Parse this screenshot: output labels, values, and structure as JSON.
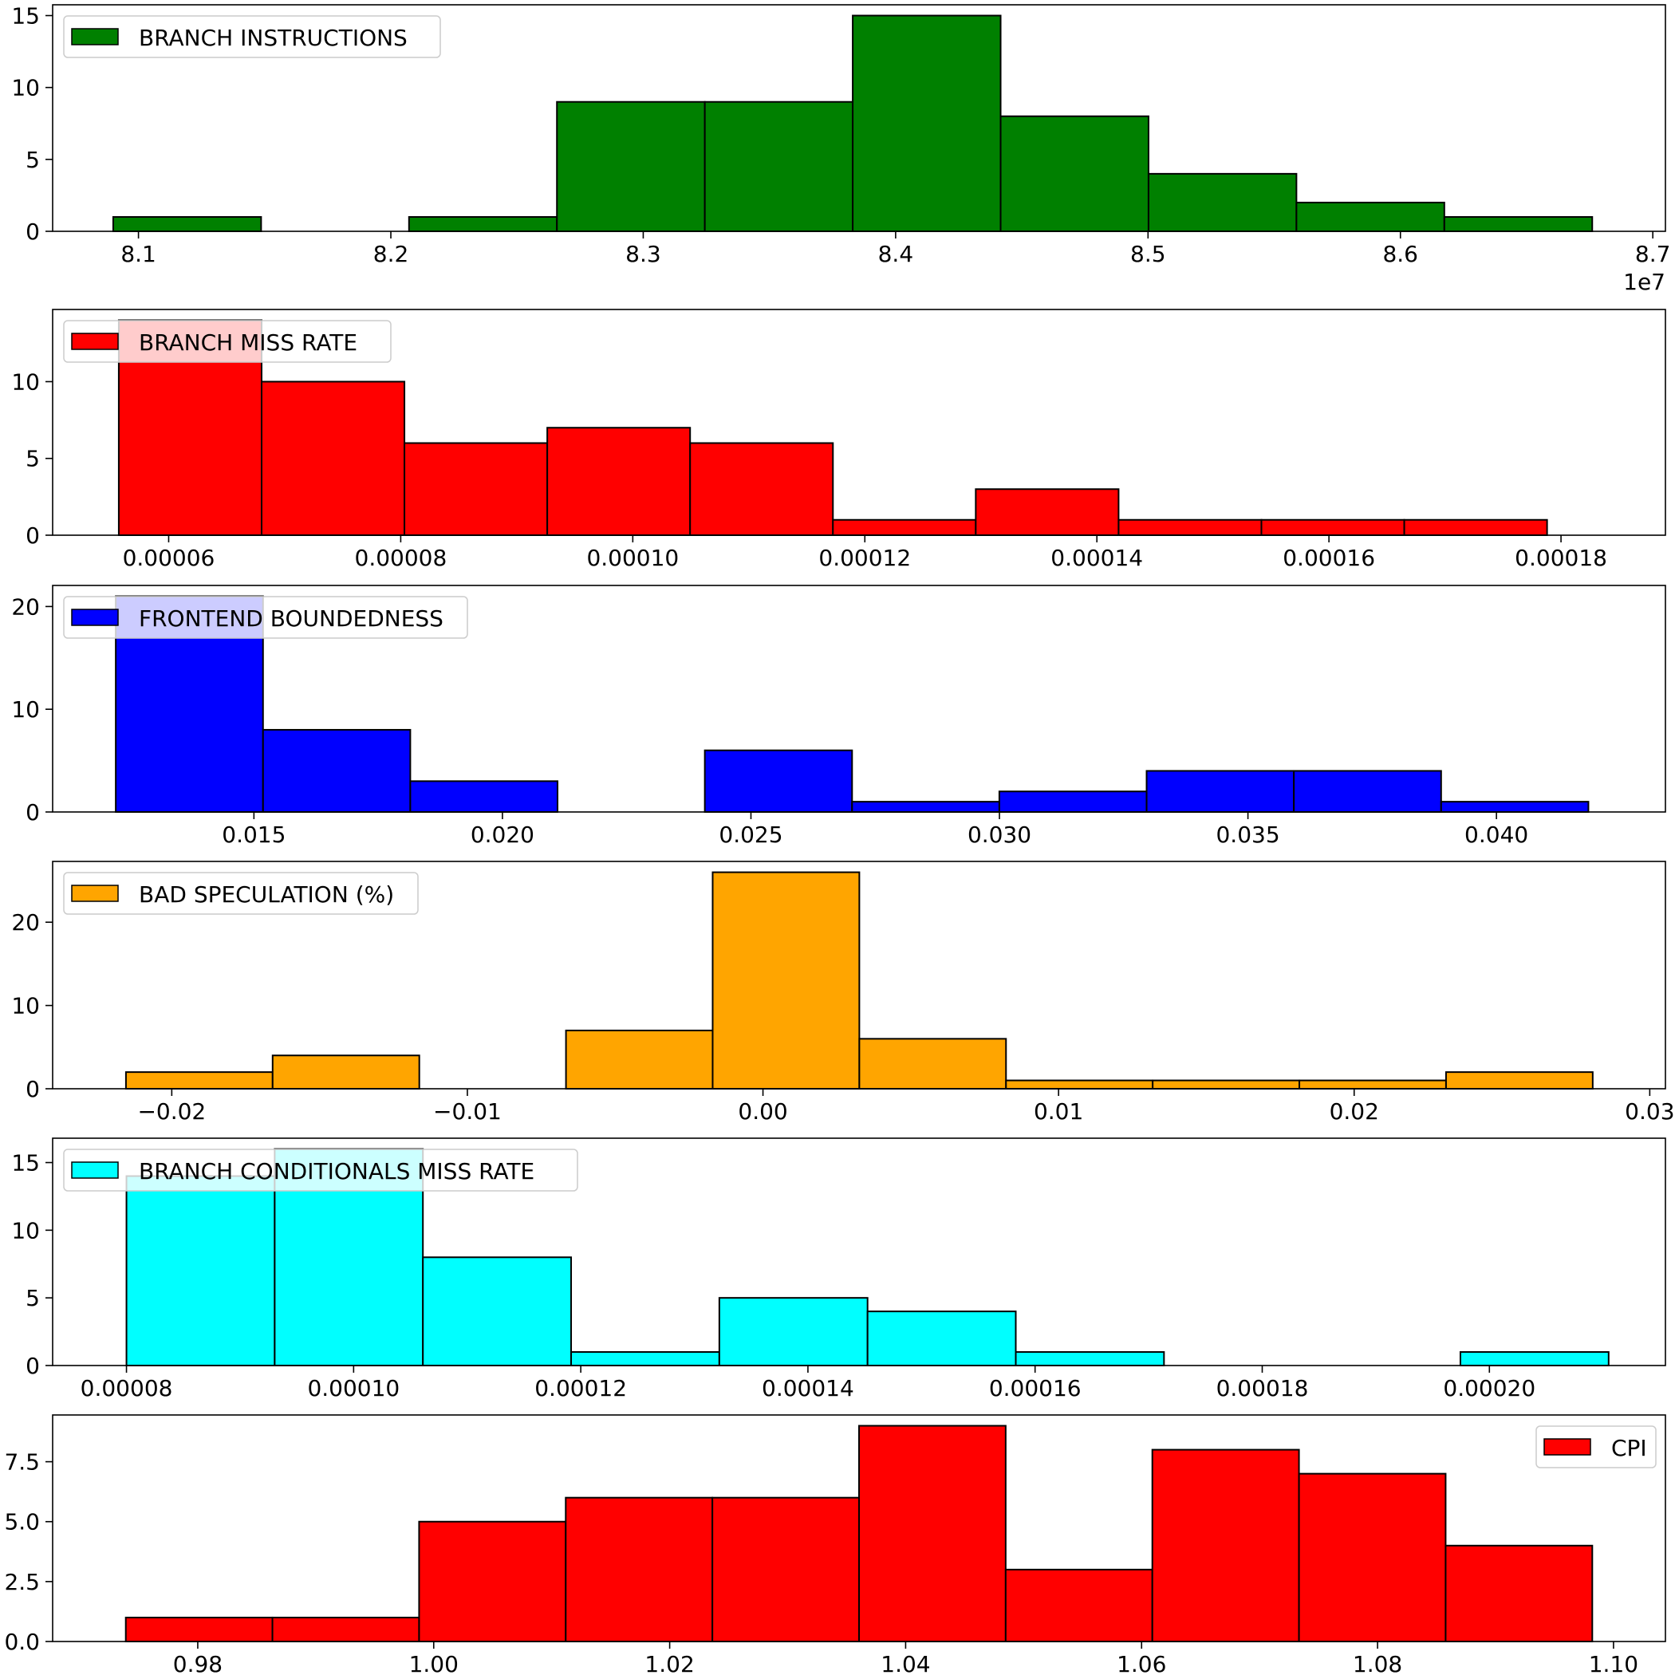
{
  "chart_data": [
    {
      "type": "bar",
      "subtype": "histogram",
      "legend": "BRANCH INSTRUCTIONS",
      "legend_position": "upper-left",
      "color": "#008000",
      "bin_start": 80900000,
      "bin_width": 586000,
      "counts": [
        1,
        0,
        1,
        9,
        9,
        15,
        8,
        4,
        2,
        1
      ],
      "xlim": [
        80660000,
        87050000
      ],
      "ylim": [
        0,
        15.75
      ],
      "xticks": [
        81000000,
        82000000,
        83000000,
        84000000,
        85000000,
        86000000,
        87000000
      ],
      "xtick_labels": [
        "8.1",
        "8.2",
        "8.3",
        "8.4",
        "8.5",
        "8.6",
        "8.7"
      ],
      "offset_text": "1e7",
      "yticks": [
        0,
        5,
        10,
        15
      ],
      "ytick_labels": [
        "0",
        "5",
        "10",
        "15"
      ]
    },
    {
      "type": "bar",
      "subtype": "histogram",
      "legend": "BRANCH MISS RATE",
      "legend_position": "upper-left",
      "color": "#ff0000",
      "bin_start": 5.57e-05,
      "bin_width": 1.231e-05,
      "counts": [
        14,
        10,
        6,
        7,
        6,
        1,
        3,
        1,
        1,
        1
      ],
      "xlim": [
        5e-05,
        0.000189
      ],
      "ylim": [
        0,
        14.7
      ],
      "xticks": [
        6e-05,
        8e-05,
        0.0001,
        0.00012,
        0.00014,
        0.00016,
        0.00018
      ],
      "xtick_labels": [
        "0.00006",
        "0.00008",
        "0.00010",
        "0.00012",
        "0.00014",
        "0.00016",
        "0.00018"
      ],
      "yticks": [
        0,
        5,
        10
      ],
      "ytick_labels": [
        "0",
        "5",
        "10"
      ]
    },
    {
      "type": "bar",
      "subtype": "histogram",
      "legend": "FRONTEND BOUNDEDNESS",
      "legend_position": "upper-left",
      "color": "#0000ff",
      "bin_start": 0.01222,
      "bin_width": 0.002963,
      "counts": [
        21,
        8,
        3,
        0,
        6,
        1,
        2,
        4,
        4,
        1
      ],
      "xlim": [
        0.01095,
        0.0434
      ],
      "ylim": [
        0,
        22.05
      ],
      "xticks": [
        0.015,
        0.02,
        0.025,
        0.03,
        0.035,
        0.04
      ],
      "xtick_labels": [
        "0.015",
        "0.020",
        "0.025",
        "0.030",
        "0.035",
        "0.040"
      ],
      "yticks": [
        0,
        10,
        20
      ],
      "ytick_labels": [
        "0",
        "10",
        "20"
      ]
    },
    {
      "type": "bar",
      "subtype": "histogram",
      "legend": "BAD SPECULATION (%)",
      "legend_position": "upper-left",
      "color": "#ffa500",
      "bin_start": -0.02155,
      "bin_width": 0.004962,
      "counts": [
        2,
        4,
        0,
        7,
        26,
        6,
        1,
        1,
        1,
        2
      ],
      "xlim": [
        -0.02403,
        0.03053
      ],
      "ylim": [
        0,
        27.3
      ],
      "xticks": [
        -0.02,
        -0.01,
        0,
        0.01,
        0.02,
        0.03
      ],
      "xtick_labels": [
        "−0.02",
        "−0.01",
        "0.00",
        "0.01",
        "0.02",
        "0.03"
      ],
      "yticks": [
        0,
        10,
        20
      ],
      "ytick_labels": [
        "0",
        "10",
        "20"
      ]
    },
    {
      "type": "bar",
      "subtype": "histogram",
      "legend": "BRANCH CONDITIONALS MISS RATE",
      "legend_position": "upper-left",
      "color": "#00ffff",
      "bin_start": 8e-05,
      "bin_width": 1.305e-05,
      "counts": [
        14,
        16,
        8,
        1,
        5,
        4,
        1,
        0,
        0,
        1
      ],
      "xlim": [
        7.35e-05,
        0.0002155
      ],
      "ylim": [
        0,
        16.8
      ],
      "xticks": [
        8e-05,
        0.0001,
        0.00012,
        0.00014,
        0.00016,
        0.00018,
        0.0002
      ],
      "xtick_labels": [
        "0.00008",
        "0.00010",
        "0.00012",
        "0.00014",
        "0.00016",
        "0.00018",
        "0.00020"
      ],
      "yticks": [
        0,
        5,
        10,
        15
      ],
      "ytick_labels": [
        "0",
        "5",
        "10",
        "15"
      ]
    },
    {
      "type": "bar",
      "subtype": "histogram",
      "legend": "CPI",
      "legend_position": "upper-right",
      "color": "#ff0000",
      "bin_start": 0.9739,
      "bin_width": 0.01243,
      "counts": [
        1,
        1,
        5,
        6,
        6,
        9,
        3,
        8,
        7,
        4
      ],
      "xlim": [
        0.9677,
        1.1044
      ],
      "ylim": [
        0,
        9.45
      ],
      "xticks": [
        0.98,
        1.0,
        1.02,
        1.04,
        1.06,
        1.08,
        1.1
      ],
      "xtick_labels": [
        "0.98",
        "1.00",
        "1.02",
        "1.04",
        "1.06",
        "1.08",
        "1.10"
      ],
      "yticks": [
        0,
        2.5,
        5,
        7.5
      ],
      "ytick_labels": [
        "0.0",
        "2.5",
        "5.0",
        "7.5"
      ]
    }
  ]
}
